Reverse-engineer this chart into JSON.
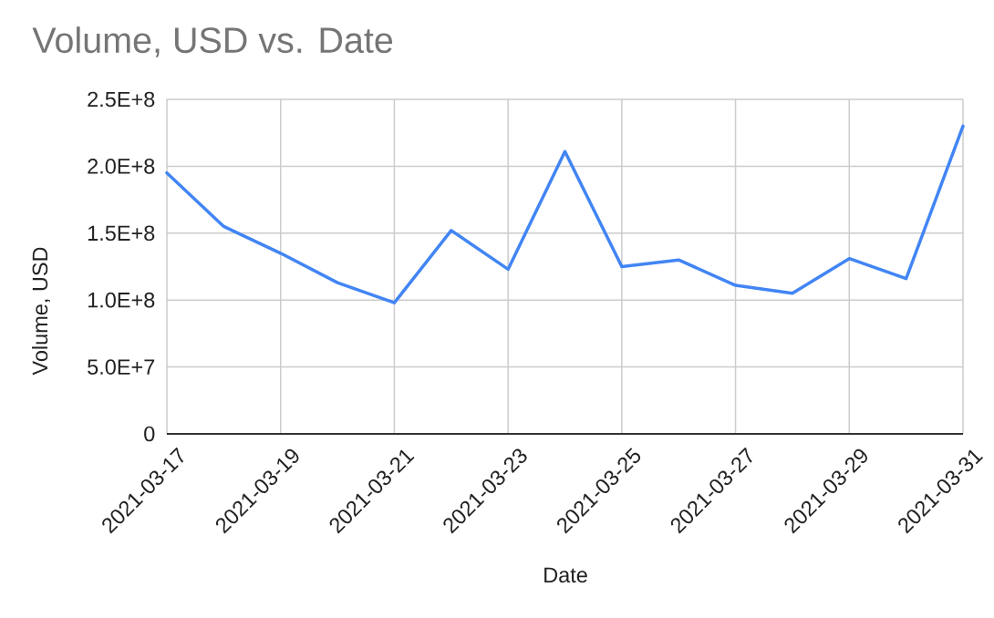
{
  "chart_data": {
    "type": "line",
    "title": "Volume, USD vs. Date",
    "xlabel": "Date",
    "ylabel": "Volume, USD",
    "x": [
      "2021-03-17",
      "2021-03-18",
      "2021-03-19",
      "2021-03-20",
      "2021-03-21",
      "2021-03-22",
      "2021-03-23",
      "2021-03-24",
      "2021-03-25",
      "2021-03-26",
      "2021-03-27",
      "2021-03-28",
      "2021-03-29",
      "2021-03-30",
      "2021-03-31"
    ],
    "values": [
      195000000,
      155000000,
      135000000,
      113000000,
      98000000,
      152000000,
      123000000,
      211000000,
      125000000,
      130000000,
      111000000,
      105000000,
      131000000,
      116000000,
      230000000
    ],
    "color": "#4285f4",
    "xlim": [
      "2021-03-17",
      "2021-03-31"
    ],
    "xticks": [
      "2021-03-17",
      "2021-03-19",
      "2021-03-21",
      "2021-03-23",
      "2021-03-25",
      "2021-03-27",
      "2021-03-29",
      "2021-03-31"
    ],
    "ylim": [
      0,
      250000000
    ],
    "yticks": [
      0,
      {
        "value": 50000000,
        "label": "5.0E+7"
      },
      {
        "value": 100000000,
        "label": "1.0E+8"
      },
      {
        "value": 150000000,
        "label": "1.5E+8"
      },
      {
        "value": 200000000,
        "label": "2.0E+8"
      },
      {
        "value": 250000000,
        "label": "2.5E+8"
      }
    ],
    "grid": true
  }
}
